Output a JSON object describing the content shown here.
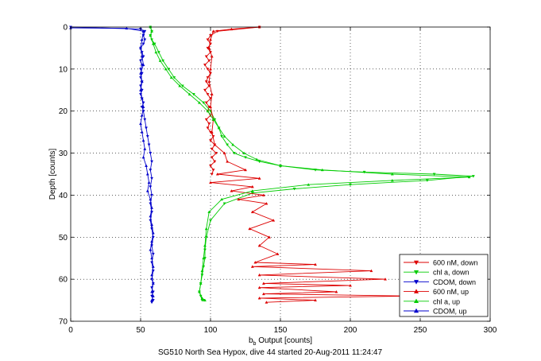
{
  "chart_data": {
    "type": "line",
    "xlabel": "b",
    "xlabel_sub": "b",
    "xlabel_rest": " Output [counts]",
    "ylabel": "Depth [counts]",
    "footer": "SG510 North Sea Hypox, dive 44 started 20-Aug-2011 11:24:47",
    "xlim": [
      0,
      300
    ],
    "ylim": [
      0,
      70
    ],
    "y_reversed": true,
    "grid": true,
    "legend_position": "bottom-right",
    "xticks": [
      "0",
      "50",
      "100",
      "150",
      "200",
      "250",
      "300"
    ],
    "yticks": [
      "0",
      "10",
      "20",
      "30",
      "40",
      "50",
      "60",
      "70"
    ],
    "series": [
      {
        "name": "600 nM, down",
        "color": "#dd0000",
        "marker": "down",
        "x": [
          135,
          105,
          100,
          98,
          100,
          98,
          100,
          97,
          99,
          96,
          98,
          100,
          98,
          97,
          99,
          96,
          98,
          100,
          97,
          99,
          98,
          100,
          97,
          99,
          98,
          100,
          102,
          100,
          103,
          101,
          104,
          101,
          103,
          100,
          102,
          101
        ],
        "y": [
          0,
          1,
          2,
          3,
          4,
          5,
          6,
          7,
          8,
          9,
          10,
          11,
          12,
          13,
          14,
          15,
          16,
          17,
          18,
          19,
          20,
          21,
          22,
          23,
          24,
          25,
          26,
          27,
          28,
          29,
          30,
          31,
          32,
          33,
          34,
          35
        ]
      },
      {
        "name": "chl a, down",
        "color": "#00cc00",
        "marker": "down",
        "x": [
          57,
          58,
          57,
          58,
          60,
          63,
          66,
          70,
          74,
          80,
          88,
          95,
          100,
          103,
          106,
          108,
          112,
          117,
          125,
          135,
          150,
          175,
          210,
          260,
          288,
          255,
          200,
          160,
          130,
          110,
          100,
          97,
          96,
          96,
          95,
          94,
          93,
          92,
          93,
          94,
          95
        ],
        "y": [
          0,
          1,
          2,
          3,
          4,
          6,
          8,
          10,
          12,
          14,
          16,
          18,
          20,
          22,
          24,
          26,
          28,
          30,
          31,
          32,
          33,
          34,
          34.5,
          35,
          35.5,
          36.5,
          37.5,
          38.5,
          39.5,
          42,
          46,
          50,
          53,
          55,
          57,
          59,
          61,
          63,
          64,
          65,
          65
        ]
      },
      {
        "name": "CDOM, down",
        "color": "#0000cc",
        "marker": "down",
        "x": [
          0,
          50,
          53,
          52,
          53,
          52,
          50,
          51,
          52,
          50,
          51,
          50,
          51,
          50,
          51,
          50,
          51,
          50,
          51,
          52,
          51,
          52,
          53,
          54,
          55,
          56,
          57,
          58,
          57,
          58,
          57,
          58,
          57,
          58,
          57,
          58,
          59,
          58,
          59,
          58,
          59,
          58,
          59,
          58,
          59,
          58,
          59,
          58
        ],
        "y": [
          0,
          0.5,
          1,
          2,
          3,
          4,
          5,
          6,
          7,
          8,
          9,
          10,
          11,
          12,
          13,
          14,
          15,
          16,
          17,
          18,
          19,
          20,
          22,
          24,
          26,
          28,
          30,
          32,
          34,
          36,
          38,
          40,
          42,
          44,
          46,
          48,
          50,
          52,
          54,
          56,
          58,
          60,
          61,
          62,
          63,
          64,
          65,
          65.5
        ]
      },
      {
        "name": "600 nM, up",
        "color": "#dd0000",
        "marker": "up",
        "x": [
          135,
          115,
          102,
          100,
          99,
          101,
          100,
          99,
          101,
          100,
          102,
          101,
          103,
          110,
          112,
          125,
          105,
          135,
          100,
          130,
          115,
          138,
          120,
          140,
          130,
          145,
          128,
          142,
          135,
          148,
          132,
          175,
          130,
          215,
          135,
          225,
          138,
          200,
          135,
          190,
          138,
          245,
          135,
          175,
          140
        ],
        "y": [
          0,
          0.5,
          1,
          3,
          5,
          7,
          10,
          13,
          16,
          19,
          22,
          25,
          28,
          30,
          32,
          34,
          35,
          36,
          37,
          38,
          39,
          40,
          41,
          42,
          44,
          46,
          48,
          50,
          52,
          54,
          56,
          56.5,
          57,
          58,
          59,
          60,
          61,
          61.5,
          62,
          63,
          63.5,
          64,
          64.5,
          65,
          65.5
        ]
      },
      {
        "name": "chl a, up",
        "color": "#00cc00",
        "marker": "up",
        "x": [
          57,
          58,
          57,
          59,
          61,
          64,
          68,
          72,
          78,
          85,
          92,
          98,
          102,
          106,
          110,
          116,
          124,
          133,
          150,
          180,
          230,
          285,
          230,
          170,
          130,
          108,
          99,
          97,
          96,
          95,
          94,
          93,
          92,
          94,
          96
        ],
        "y": [
          0,
          1,
          2,
          4,
          6,
          8,
          10,
          12,
          14,
          16,
          18,
          20,
          22,
          24,
          26,
          28,
          30,
          31.5,
          33,
          34,
          35,
          35.7,
          36.5,
          37.5,
          39,
          41,
          44,
          48,
          52,
          55,
          58,
          61,
          63,
          64.5,
          65
        ]
      },
      {
        "name": "CDOM, up",
        "color": "#0000cc",
        "marker": "up",
        "x": [
          0,
          40,
          52,
          51,
          50,
          51,
          52,
          50,
          51,
          50,
          51,
          52,
          51,
          50,
          51,
          52,
          53,
          52,
          54,
          55,
          56,
          55,
          57,
          58,
          57,
          58,
          59,
          58,
          57,
          58,
          59,
          58,
          59,
          58,
          59,
          58
        ],
        "y": [
          0.2,
          0.3,
          1,
          3,
          5,
          7,
          9,
          11,
          13,
          15,
          17,
          19,
          21,
          23,
          25,
          27,
          29,
          31,
          33,
          35,
          37,
          39,
          41,
          43,
          45,
          47,
          49,
          51,
          53,
          55,
          57,
          59,
          61,
          63,
          64,
          65
        ]
      }
    ]
  }
}
